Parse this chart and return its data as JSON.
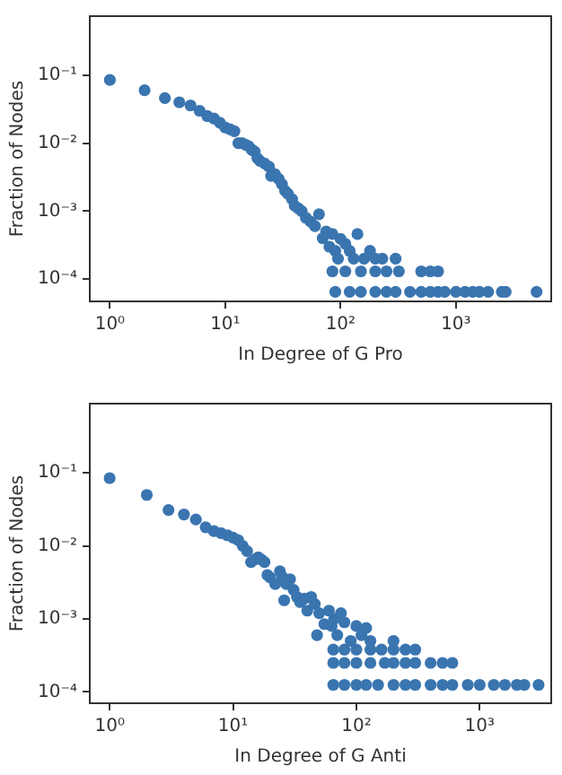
{
  "chart_data": [
    {
      "type": "scatter",
      "xlabel": "In Degree of G Pro",
      "ylabel": "Fraction of Nodes",
      "log": "xy",
      "marker": "circle",
      "color": "#3a75b0",
      "xlim": [
        0.67,
        6700
      ],
      "ylim": [
        4.7e-05,
        0.74
      ],
      "xticks": [
        {
          "value": 1,
          "label": "10⁰"
        },
        {
          "value": 10,
          "label": "10¹"
        },
        {
          "value": 100,
          "label": "10²"
        },
        {
          "value": 1000,
          "label": "10³"
        }
      ],
      "yticks": [
        {
          "value": 0.0001,
          "label": "10⁻⁴"
        },
        {
          "value": 0.001,
          "label": "10⁻³"
        },
        {
          "value": 0.01,
          "label": "10⁻²"
        },
        {
          "value": 0.1,
          "label": "10⁻¹"
        }
      ],
      "x": [
        1,
        2,
        3,
        4,
        5,
        6,
        7,
        8,
        9,
        10,
        11,
        12,
        13,
        14,
        15,
        16,
        17,
        18,
        19,
        20,
        22,
        24,
        25,
        27,
        29,
        31,
        33,
        35,
        38,
        40,
        43,
        46,
        50,
        55,
        60,
        65,
        70,
        75,
        80,
        85,
        90,
        95,
        100,
        110,
        120,
        130,
        140,
        160,
        180,
        200,
        230,
        300,
        85,
        110,
        150,
        200,
        250,
        320,
        500,
        600,
        700,
        90,
        120,
        150,
        200,
        250,
        300,
        400,
        500,
        600,
        700,
        800,
        1000,
        1200,
        1400,
        1600,
        1900,
        2500,
        2700,
        5000
      ],
      "values": [
        0.085,
        0.06,
        0.046,
        0.04,
        0.036,
        0.03,
        0.025,
        0.023,
        0.02,
        0.017,
        0.016,
        0.015,
        0.01,
        0.01,
        0.0095,
        0.009,
        0.008,
        0.0075,
        0.006,
        0.0055,
        0.005,
        0.0045,
        0.0033,
        0.0035,
        0.003,
        0.0025,
        0.002,
        0.0018,
        0.0015,
        0.0012,
        0.0011,
        0.001,
        0.0008,
        0.0007,
        0.0006,
        0.0009,
        0.0004,
        0.0005,
        0.0003,
        0.00046,
        0.00026,
        0.0002,
        0.00039,
        0.00033,
        0.00026,
        0.0002,
        0.00046,
        0.0002,
        0.00026,
        0.0002,
        0.0002,
        0.0002,
        0.00013,
        0.00013,
        0.00013,
        0.00013,
        0.00013,
        0.00013,
        0.00013,
        0.00013,
        0.00013,
        6.5e-05,
        6.5e-05,
        6.5e-05,
        6.5e-05,
        6.5e-05,
        6.5e-05,
        6.5e-05,
        6.5e-05,
        6.5e-05,
        6.5e-05,
        6.5e-05,
        6.5e-05,
        6.5e-05,
        6.5e-05,
        6.5e-05,
        6.5e-05,
        6.5e-05,
        6.5e-05,
        6.5e-05
      ]
    },
    {
      "type": "scatter",
      "xlabel": "In Degree of G Anti",
      "ylabel": "Fraction of Nodes",
      "log": "xy",
      "marker": "circle",
      "color": "#3a75b0",
      "xlim": [
        0.69,
        3800
      ],
      "ylim": [
        7.4e-05,
        0.89
      ],
      "xticks": [
        {
          "value": 1,
          "label": "10⁰"
        },
        {
          "value": 10,
          "label": "10¹"
        },
        {
          "value": 100,
          "label": "10²"
        },
        {
          "value": 1000,
          "label": "10³"
        }
      ],
      "yticks": [
        {
          "value": 0.0001,
          "label": "10⁻⁴"
        },
        {
          "value": 0.001,
          "label": "10⁻³"
        },
        {
          "value": 0.01,
          "label": "10⁻²"
        },
        {
          "value": 0.1,
          "label": "10⁻¹"
        }
      ],
      "x": [
        1,
        2,
        3,
        4,
        5,
        6,
        7,
        8,
        9,
        10,
        11,
        12,
        13,
        14,
        15,
        16,
        17,
        18,
        19,
        20,
        22,
        24,
        25,
        26,
        27,
        29,
        31,
        33,
        35,
        38,
        40,
        43,
        46,
        48,
        50,
        55,
        60,
        63,
        66,
        70,
        75,
        80,
        90,
        100,
        110,
        120,
        130,
        200,
        65,
        80,
        100,
        130,
        160,
        200,
        250,
        300,
        65,
        80,
        100,
        130,
        170,
        200,
        250,
        300,
        400,
        500,
        600,
        65,
        80,
        100,
        120,
        150,
        200,
        250,
        300,
        400,
        500,
        600,
        800,
        1000,
        1300,
        1600,
        2000,
        2300,
        3000
      ],
      "values": [
        0.085,
        0.05,
        0.031,
        0.027,
        0.023,
        0.018,
        0.016,
        0.015,
        0.014,
        0.013,
        0.012,
        0.01,
        0.0085,
        0.006,
        0.0065,
        0.007,
        0.0065,
        0.006,
        0.004,
        0.0037,
        0.003,
        0.0045,
        0.0038,
        0.0018,
        0.003,
        0.0035,
        0.0025,
        0.002,
        0.0017,
        0.0019,
        0.0013,
        0.002,
        0.0016,
        0.0006,
        0.0012,
        0.00085,
        0.0013,
        0.0008,
        0.001,
        0.0006,
        0.0012,
        0.0009,
        0.0005,
        0.0008,
        0.0006,
        0.00075,
        0.0005,
        0.0005,
        0.00038,
        0.00038,
        0.00038,
        0.00038,
        0.00038,
        0.00038,
        0.00038,
        0.00038,
        0.00025,
        0.00025,
        0.00025,
        0.00025,
        0.00025,
        0.00025,
        0.00025,
        0.00025,
        0.00025,
        0.00025,
        0.00025,
        0.000125,
        0.000125,
        0.000125,
        0.000125,
        0.000125,
        0.000125,
        0.000125,
        0.000125,
        0.000125,
        0.000125,
        0.000125,
        0.000125,
        0.000125,
        0.000125,
        0.000125,
        0.000125,
        0.000125,
        0.000125
      ]
    }
  ]
}
